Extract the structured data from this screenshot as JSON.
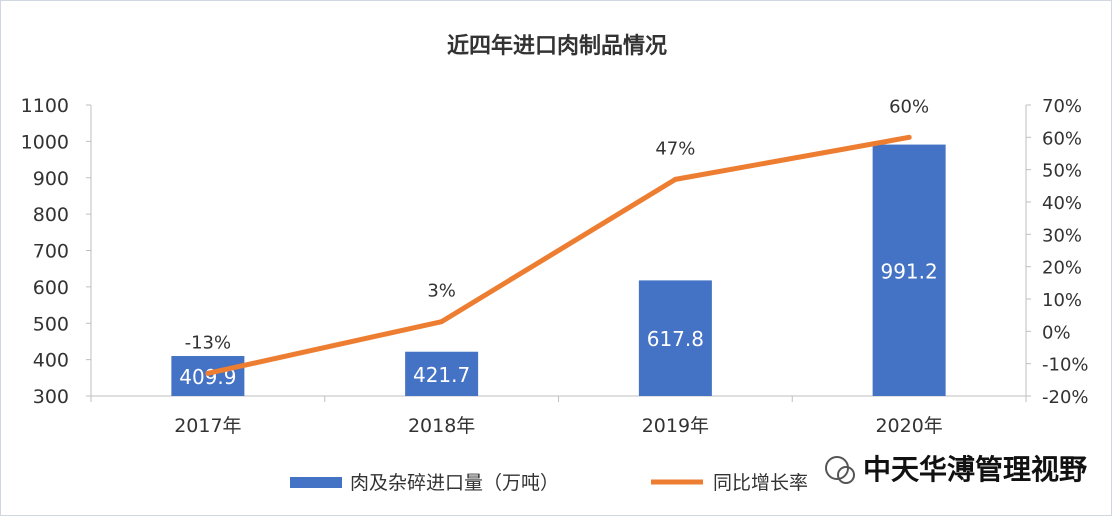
{
  "chart_data": {
    "type": "bar+line",
    "title": "近四年进口肉制品情况",
    "categories": [
      "2017年",
      "2018年",
      "2019年",
      "2020年"
    ],
    "series": [
      {
        "name": "肉及杂碎进口量（万吨）",
        "kind": "bar",
        "axis": "left",
        "color": "#4472C4",
        "values": [
          409.9,
          421.7,
          617.8,
          991.2
        ],
        "labels": [
          "409.9",
          "421.7",
          "617.8",
          "991.2"
        ]
      },
      {
        "name": "同比增长率",
        "kind": "line",
        "axis": "right",
        "color": "#ED7D31",
        "values": [
          -13,
          3,
          47,
          60
        ],
        "labels": [
          "-13%",
          "3%",
          "47%",
          "60%"
        ]
      }
    ],
    "y_left": {
      "min": 300,
      "max": 1100,
      "ticks": [
        "300",
        "400",
        "500",
        "600",
        "700",
        "800",
        "900",
        "1000",
        "1100"
      ]
    },
    "y_right": {
      "min": -20,
      "max": 70,
      "ticks": [
        "-20%",
        "-10%",
        "0%",
        "10%",
        "20%",
        "30%",
        "40%",
        "50%",
        "60%",
        "70%"
      ]
    },
    "grid": false,
    "legend": "bottom"
  },
  "watermark": "中天华溥管理视野"
}
